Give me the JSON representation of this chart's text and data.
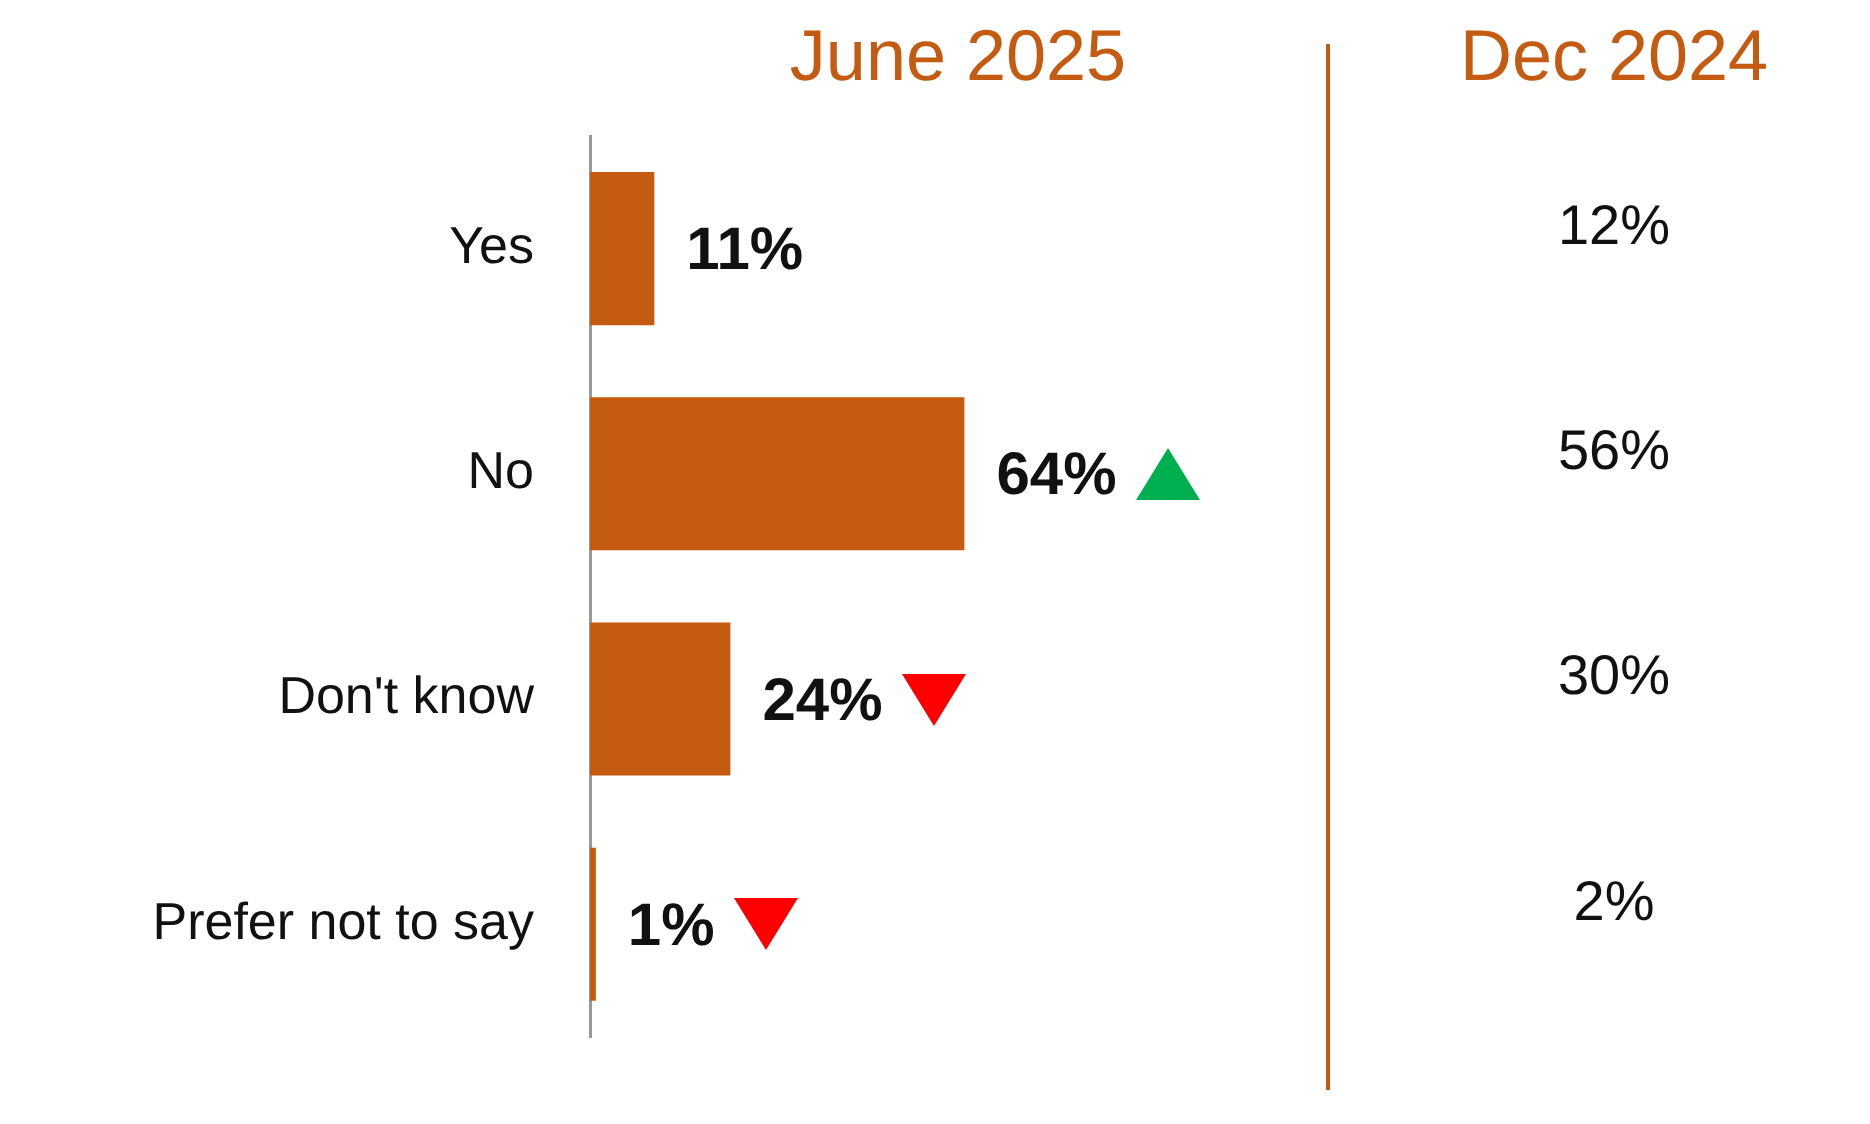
{
  "chart_data": {
    "type": "bar",
    "orientation": "horizontal",
    "title": "June 2025",
    "categories": [
      "Yes",
      "No",
      "Don't know",
      "Prefer not to say"
    ],
    "values": [
      11,
      64,
      24,
      1
    ],
    "color": "#c55a11",
    "data_labels": true,
    "value_labels": [
      "11%",
      "64%",
      "24%",
      "1%"
    ],
    "tick_labels": "y",
    "annotations": [
      "Dec 2024",
      "12%",
      "56%",
      "30%",
      "2%"
    ]
  }
}
